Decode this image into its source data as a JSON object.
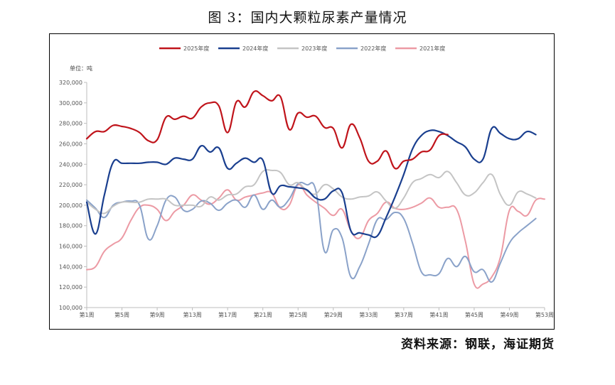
{
  "figure_title": "图 3：国内大颗粒尿素产量情况",
  "source_note": "资料来源：钢联，海证期货",
  "chart_data": {
    "type": "line",
    "unit_label": "单位：吨",
    "ylim": [
      100000,
      320000
    ],
    "y_ticks": [
      100000,
      120000,
      140000,
      160000,
      180000,
      200000,
      220000,
      240000,
      260000,
      280000,
      300000,
      320000
    ],
    "y_tick_labels": [
      "100,000",
      "120,000",
      "140,000",
      "160,000",
      "180,000",
      "200,000",
      "220,000",
      "240,000",
      "260,000",
      "280,000",
      "300,000",
      "320,000"
    ],
    "xlim": [
      1,
      53
    ],
    "x_ticks": [
      1,
      5,
      9,
      13,
      17,
      21,
      25,
      29,
      33,
      37,
      41,
      45,
      49,
      53
    ],
    "x_tick_labels": [
      "第1周",
      "第5周",
      "第9周",
      "第13周",
      "第17周",
      "第21周",
      "第25周",
      "第29周",
      "第33周",
      "第37周",
      "第41周",
      "第45周",
      "第49周",
      "第53周"
    ],
    "legend_position": "top",
    "grid": false,
    "series": [
      {
        "name": "2025年度",
        "color": "#c0141b",
        "x": [
          1,
          2,
          3,
          4,
          5,
          6,
          7,
          8,
          9,
          10,
          11,
          12,
          13,
          14,
          15,
          16,
          17,
          18,
          19,
          20,
          21,
          22,
          23,
          24,
          25,
          26,
          27,
          28,
          29,
          30,
          31,
          32,
          33,
          34,
          35,
          36,
          37,
          38,
          39,
          40,
          41,
          42
        ],
        "values": [
          265000,
          272000,
          272000,
          278000,
          277000,
          275000,
          271000,
          263000,
          264000,
          286000,
          284000,
          287000,
          285000,
          296000,
          300000,
          297000,
          271000,
          301000,
          296000,
          311000,
          307000,
          302000,
          306000,
          274000,
          290000,
          286000,
          287000,
          276000,
          275000,
          256000,
          279000,
          266000,
          243000,
          243000,
          253000,
          236000,
          243000,
          245000,
          252000,
          254000,
          268000,
          269000
        ]
      },
      {
        "name": "2024年度",
        "color": "#1a3f8f",
        "x": [
          1,
          2,
          3,
          4,
          5,
          6,
          7,
          8,
          9,
          10,
          11,
          12,
          13,
          14,
          15,
          16,
          17,
          18,
          19,
          20,
          21,
          22,
          23,
          24,
          25,
          26,
          27,
          28,
          29,
          30,
          31,
          32,
          33,
          34,
          35,
          36,
          37,
          38,
          39,
          40,
          41,
          42,
          43,
          44,
          45,
          46,
          47,
          48,
          49,
          50,
          51,
          52
        ],
        "values": [
          203000,
          172000,
          210000,
          242000,
          241000,
          241000,
          241000,
          242000,
          242000,
          240000,
          246000,
          245000,
          245000,
          258000,
          252000,
          256000,
          236000,
          241000,
          246000,
          242000,
          244000,
          212000,
          219000,
          218000,
          217000,
          215000,
          207000,
          206000,
          214000,
          212000,
          175000,
          173000,
          171000,
          170000,
          188000,
          208000,
          230000,
          255000,
          268000,
          273000,
          272000,
          268000,
          262000,
          257000,
          245000,
          245000,
          275000,
          270000,
          265000,
          265000,
          272000,
          269000
        ]
      },
      {
        "name": "2023年度",
        "color": "#c4c4c4",
        "x": [
          1,
          2,
          3,
          4,
          5,
          6,
          7,
          8,
          9,
          10,
          11,
          12,
          13,
          14,
          15,
          16,
          17,
          18,
          19,
          20,
          21,
          22,
          23,
          24,
          25,
          26,
          27,
          28,
          29,
          30,
          31,
          32,
          33,
          34,
          35,
          36,
          37,
          38,
          39,
          40,
          41,
          42,
          43,
          44,
          45,
          46,
          47,
          48,
          49,
          50,
          51,
          52
        ],
        "values": [
          203000,
          196000,
          192000,
          199000,
          203000,
          203000,
          203000,
          206000,
          206000,
          206000,
          200000,
          200000,
          200000,
          199000,
          208000,
          205000,
          210000,
          211000,
          218000,
          220000,
          233000,
          234000,
          232000,
          220000,
          222000,
          214000,
          211000,
          220000,
          216000,
          208000,
          206000,
          208000,
          209000,
          213000,
          204000,
          197000,
          207000,
          222000,
          226000,
          230000,
          227000,
          233000,
          222000,
          210000,
          212000,
          222000,
          230000,
          210000,
          200000,
          213000,
          211000,
          207000
        ]
      },
      {
        "name": "2022年度",
        "color": "#8aa2c9",
        "x": [
          1,
          2,
          3,
          4,
          5,
          6,
          7,
          8,
          9,
          10,
          11,
          12,
          13,
          14,
          15,
          16,
          17,
          18,
          19,
          20,
          21,
          22,
          23,
          24,
          25,
          26,
          27,
          28,
          29,
          30,
          31,
          32,
          33,
          34,
          35,
          36,
          37,
          38,
          39,
          40,
          41,
          42,
          43,
          44,
          45,
          46,
          47,
          48,
          49,
          50,
          51,
          52
        ],
        "values": [
          205000,
          197000,
          188000,
          200000,
          203000,
          204000,
          200000,
          167000,
          180000,
          205000,
          208000,
          195000,
          196000,
          204000,
          202000,
          195000,
          202000,
          205000,
          198000,
          210000,
          196000,
          205000,
          198000,
          206000,
          221000,
          220000,
          215000,
          155000,
          176000,
          168000,
          130000,
          140000,
          162000,
          186000,
          186000,
          193000,
          187000,
          163000,
          135000,
          132000,
          133000,
          148000,
          140000,
          150000,
          135000,
          137000,
          125000,
          144000,
          163000,
          173000,
          180000,
          187000
        ]
      },
      {
        "name": "2021年度",
        "color": "#ec9aa4",
        "x": [
          1,
          2,
          3,
          4,
          5,
          6,
          7,
          8,
          9,
          10,
          11,
          12,
          13,
          14,
          15,
          16,
          17,
          18,
          19,
          20,
          21,
          22,
          23,
          24,
          25,
          26,
          27,
          28,
          29,
          30,
          31,
          32,
          33,
          34,
          35,
          36,
          37,
          38,
          39,
          40,
          41,
          42,
          43,
          44,
          45,
          46,
          47,
          48,
          49,
          50,
          51,
          52,
          53
        ],
        "values": [
          137000,
          140000,
          155000,
          162000,
          168000,
          185000,
          198000,
          200000,
          196000,
          185000,
          194000,
          200000,
          210000,
          205000,
          201000,
          207000,
          215000,
          205000,
          208000,
          210000,
          212000,
          212000,
          197000,
          200000,
          220000,
          210000,
          203000,
          197000,
          190000,
          196000,
          175000,
          168000,
          185000,
          192000,
          203000,
          197000,
          196000,
          198000,
          202000,
          207000,
          198000,
          198000,
          196000,
          165000,
          123000,
          123000,
          130000,
          150000,
          195000,
          194000,
          190000,
          205000,
          206000
        ]
      }
    ]
  }
}
